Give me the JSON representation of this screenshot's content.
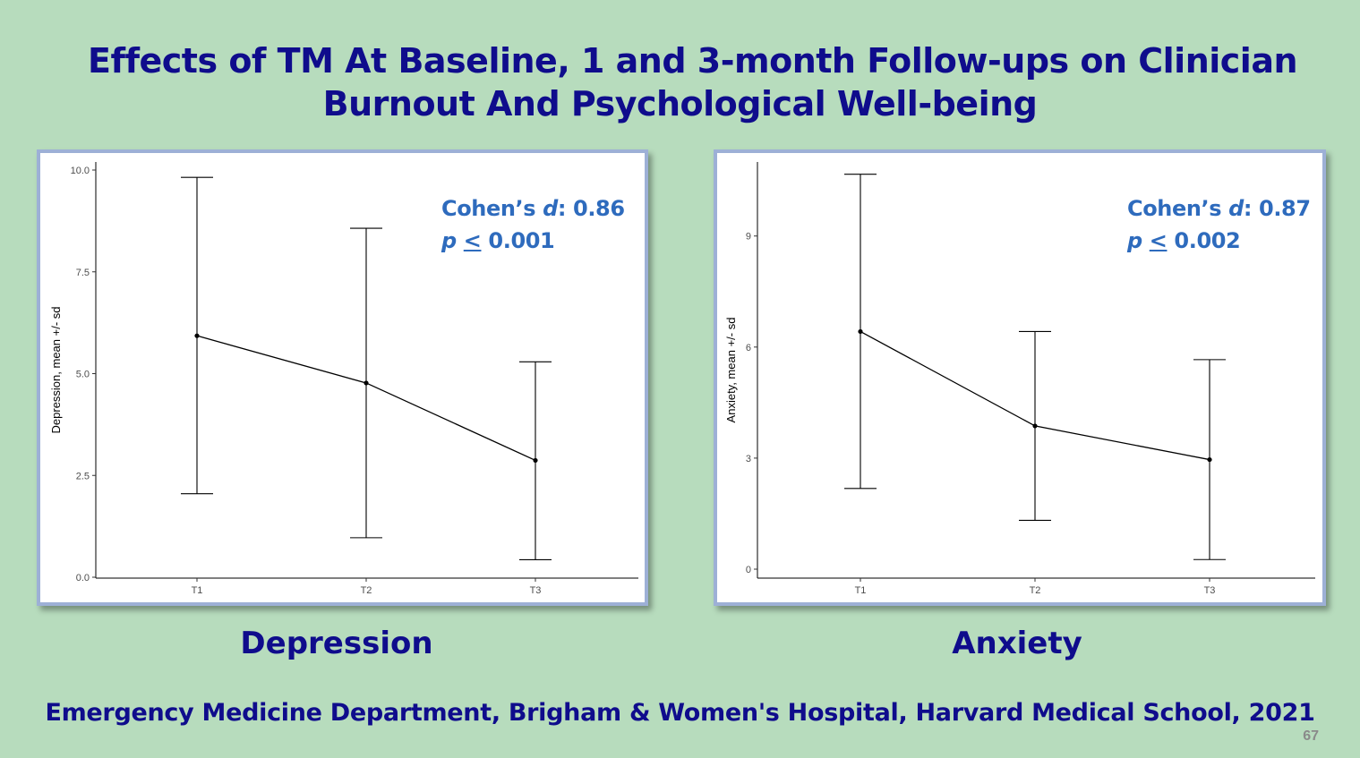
{
  "title": {
    "line1": "Effects of TM At Baseline, 1 and 3-month Follow-ups on Clinician",
    "line2": "Burnout And Psychological Well-being"
  },
  "footer": "Emergency Medicine Department, Brigham & Women's Hospital, Harvard Medical School, 2021",
  "page_number": "67",
  "colors": {
    "background": "#b7dcbd",
    "title": "#0f0c8c",
    "stats": "#2e6bbd",
    "panel_border": "#9db0d6"
  },
  "chart_data": [
    {
      "type": "line",
      "caption": "Depression",
      "ylabel": "Depression, mean +/- sd",
      "xlabel": "",
      "categories": [
        "T1",
        "T2",
        "T3"
      ],
      "mean": [
        5.93,
        4.77,
        2.87
      ],
      "lower": [
        2.05,
        0.97,
        0.43
      ],
      "upper": [
        9.82,
        8.57,
        5.29
      ],
      "ylim": [
        0,
        10
      ],
      "yticks": [
        0,
        2.5,
        5,
        7.5,
        10
      ],
      "ytick_labels": [
        "0.0",
        "2.5",
        "5.0",
        "7.5",
        "10.0"
      ],
      "annotation": {
        "cohen_label": "Cohen’s ",
        "d": "d",
        "cohen_value": ": 0.86",
        "p": "p",
        "le": "<",
        "p_value": " 0.001"
      },
      "grid": false
    },
    {
      "type": "line",
      "caption": "Anxiety",
      "ylabel": "Anxiety, mean +/- sd",
      "xlabel": "",
      "categories": [
        "T1",
        "T2",
        "T3"
      ],
      "mean": [
        6.42,
        3.87,
        2.96
      ],
      "lower": [
        2.18,
        1.32,
        0.26
      ],
      "upper": [
        10.67,
        6.42,
        5.66
      ],
      "ylim": [
        0,
        11
      ],
      "yticks": [
        0,
        3,
        6,
        9
      ],
      "ytick_labels": [
        "0",
        "3",
        "6",
        "9"
      ],
      "annotation": {
        "cohen_label": "Cohen’s ",
        "d": "d",
        "cohen_value": ": 0.87",
        "p": "p",
        "le": "<",
        "p_value": " 0.002"
      },
      "grid": false
    }
  ]
}
